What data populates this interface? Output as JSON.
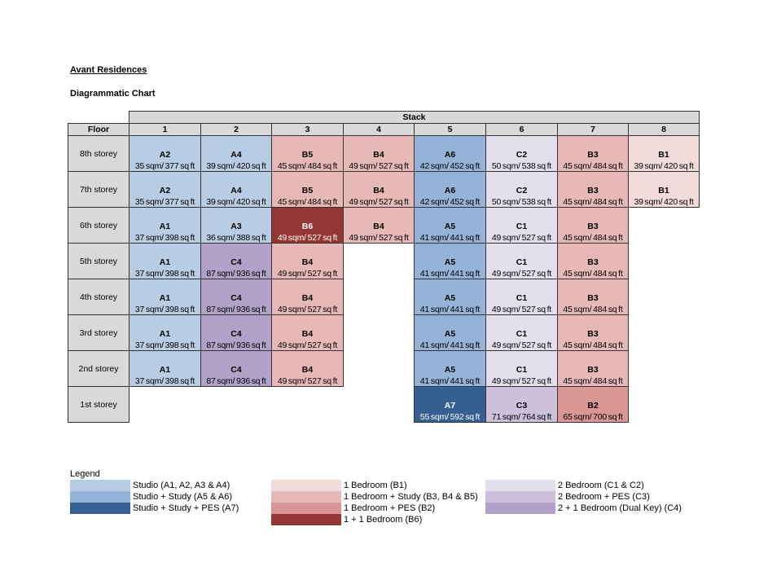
{
  "title": "Avant Residences",
  "subtitle": "Diagrammatic Chart",
  "stack_label": "Stack",
  "floor_label": "Floor",
  "stacks": [
    "1",
    "2",
    "3",
    "4",
    "5",
    "6",
    "7",
    "8"
  ],
  "colors": {
    "A_studio": "#b8cce4",
    "A_study": "#95b3d7",
    "A_pes": "#366092",
    "B1": "#f2dcdb",
    "B_study": "#e6b8b7",
    "B2": "#da9694",
    "B6": "#963634",
    "C_2br": "#e4dfec",
    "C3": "#ccc0da",
    "C4": "#b1a0c7"
  },
  "floors": [
    {
      "label": "8th storey",
      "units": [
        [
          "A2",
          "35 sqm/ 377 sq ft",
          "A_studio"
        ],
        [
          "A4",
          "39 sqm/ 420 sq ft",
          "A_studio"
        ],
        [
          "B5",
          "45 sqm/ 484 sq ft",
          "B_study"
        ],
        [
          "B4",
          "49 sqm/ 527 sq ft",
          "B_study"
        ],
        [
          "A6",
          "42 sqm/ 452 sq ft",
          "A_study"
        ],
        [
          "C2",
          "50 sqm/ 538 sq ft",
          "C_2br"
        ],
        [
          "B3",
          "45 sqm/ 484 sq ft",
          "B_study"
        ],
        [
          "B1",
          "39 sqm/ 420 sq ft",
          "B1"
        ]
      ]
    },
    {
      "label": "7th storey",
      "units": [
        [
          "A2",
          "35 sqm/ 377 sq ft",
          "A_studio"
        ],
        [
          "A4",
          "39 sqm/ 420 sq ft",
          "A_studio"
        ],
        [
          "B5",
          "45 sqm/ 484 sq ft",
          "B_study"
        ],
        [
          "B4",
          "49 sqm/ 527 sq ft",
          "B_study"
        ],
        [
          "A6",
          "42 sqm/ 452 sq ft",
          "A_study"
        ],
        [
          "C2",
          "50 sqm/ 538 sq ft",
          "C_2br"
        ],
        [
          "B3",
          "45 sqm/ 484 sq ft",
          "B_study"
        ],
        [
          "B1",
          "39 sqm/ 420 sq ft",
          "B1"
        ]
      ]
    },
    {
      "label": "6th storey",
      "units": [
        [
          "A1",
          "37 sqm/ 398 sq ft",
          "A_studio"
        ],
        [
          "A3",
          "36 sqm/ 388 sq ft",
          "A_studio"
        ],
        [
          "B6",
          "49 sqm/ 527 sq ft",
          "B6"
        ],
        [
          "B4",
          "49 sqm/ 527 sq ft",
          "B_study"
        ],
        [
          "A5",
          "41 sqm/ 441 sq ft",
          "A_study"
        ],
        [
          "C1",
          "49 sqm/ 527 sq ft",
          "C_2br"
        ],
        [
          "B3",
          "45 sqm/ 484 sq ft",
          "B_study"
        ],
        null
      ]
    },
    {
      "label": "5th storey",
      "units": [
        [
          "A1",
          "37 sqm/ 398 sq ft",
          "A_studio"
        ],
        [
          "C4",
          "87 sqm/ 936 sq ft",
          "C4"
        ],
        [
          "B4",
          "49 sqm/ 527 sq ft",
          "B_study"
        ],
        null,
        [
          "A5",
          "41 sqm/ 441 sq ft",
          "A_study"
        ],
        [
          "C1",
          "49 sqm/ 527 sq ft",
          "C_2br"
        ],
        [
          "B3",
          "45 sqm/ 484 sq ft",
          "B_study"
        ],
        null
      ]
    },
    {
      "label": "4th storey",
      "units": [
        [
          "A1",
          "37 sqm/ 398 sq ft",
          "A_studio"
        ],
        [
          "C4",
          "87 sqm/ 936 sq ft",
          "C4"
        ],
        [
          "B4",
          "49 sqm/ 527 sq ft",
          "B_study"
        ],
        null,
        [
          "A5",
          "41 sqm/ 441 sq ft",
          "A_study"
        ],
        [
          "C1",
          "49 sqm/ 527 sq ft",
          "C_2br"
        ],
        [
          "B3",
          "45 sqm/ 484 sq ft",
          "B_study"
        ],
        null
      ]
    },
    {
      "label": "3rd storey",
      "units": [
        [
          "A1",
          "37 sqm/ 398 sq ft",
          "A_studio"
        ],
        [
          "C4",
          "87 sqm/ 936 sq ft",
          "C4"
        ],
        [
          "B4",
          "49 sqm/ 527 sq ft",
          "B_study"
        ],
        null,
        [
          "A5",
          "41 sqm/ 441 sq ft",
          "A_study"
        ],
        [
          "C1",
          "49 sqm/ 527 sq ft",
          "C_2br"
        ],
        [
          "B3",
          "45 sqm/ 484 sq ft",
          "B_study"
        ],
        null
      ]
    },
    {
      "label": "2nd storey",
      "units": [
        [
          "A1",
          "37 sqm/ 398 sq ft",
          "A_studio"
        ],
        [
          "C4",
          "87 sqm/ 936 sq ft",
          "C4"
        ],
        [
          "B4",
          "49 sqm/ 527 sq ft",
          "B_study"
        ],
        null,
        [
          "A5",
          "41 sqm/ 441 sq ft",
          "A_study"
        ],
        [
          "C1",
          "49 sqm/ 527 sq ft",
          "C_2br"
        ],
        [
          "B3",
          "45 sqm/ 484 sq ft",
          "B_study"
        ],
        null
      ]
    },
    {
      "label": "1st storey",
      "units": [
        null,
        null,
        null,
        null,
        [
          "A7",
          "55 sqm/ 592 sq ft",
          "A_pes"
        ],
        [
          "C3",
          "71 sqm/ 764 sq ft",
          "C3"
        ],
        [
          "B2",
          "65 sqm/ 700 sq ft",
          "B2"
        ],
        null
      ]
    }
  ],
  "legend": {
    "title": "Legend",
    "columns": [
      [
        [
          "Studio (A1, A2, A3 & A4)",
          "A_studio"
        ],
        [
          "Studio + Study (A5 & A6)",
          "A_study"
        ],
        [
          "Studio + Study + PES (A7)",
          "A_pes"
        ]
      ],
      [
        [
          "1 Bedroom (B1)",
          "B1"
        ],
        [
          "1 Bedroom + Study (B3, B4 & B5)",
          "B_study"
        ],
        [
          "1 Bedroom + PES (B2)",
          "B2"
        ],
        [
          "1 + 1 Bedroom (B6)",
          "B6"
        ]
      ],
      [
        [
          "2 Bedroom (C1 & C2)",
          "C_2br"
        ],
        [
          "2 Bedroom + PES (C3)",
          "C3"
        ],
        [
          "2 + 1 Bedroom (Dual Key) (C4)",
          "C4"
        ]
      ]
    ]
  }
}
